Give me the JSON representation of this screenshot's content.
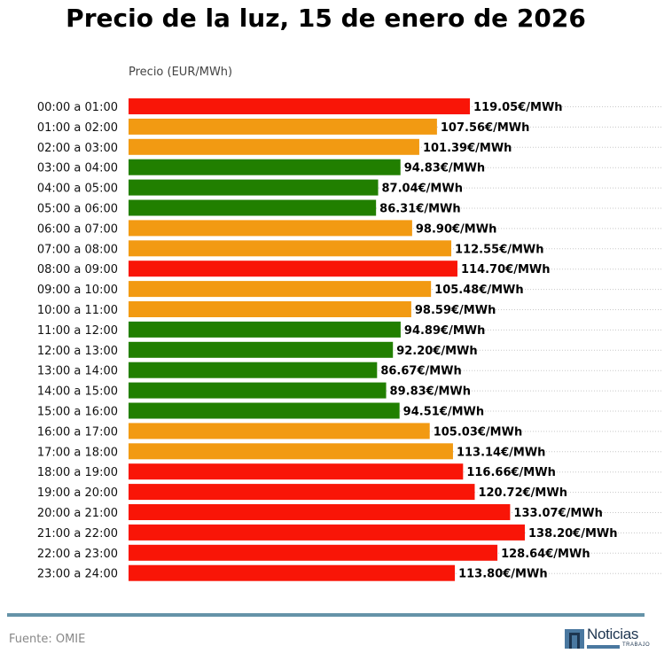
{
  "chart_data": {
    "type": "bar",
    "orientation": "horizontal",
    "title": "Precio de la luz, 15 de enero de 2026",
    "xlabel": "Precio (EUR/MWh)",
    "ylabel": "",
    "xlim": [
      0,
      138.2
    ],
    "grid": "dotted horizontal lines per row",
    "value_suffix": "€/MWh",
    "categories": [
      "00:00 a 01:00",
      "01:00 a 02:00",
      "02:00 a 03:00",
      "03:00 a 04:00",
      "04:00 a 05:00",
      "05:00 a 06:00",
      "06:00 a 07:00",
      "07:00 a 08:00",
      "08:00 a 09:00",
      "09:00 a 10:00",
      "10:00 a 11:00",
      "11:00 a 12:00",
      "12:00 a 13:00",
      "13:00 a 14:00",
      "14:00 a 15:00",
      "15:00 a 16:00",
      "16:00 a 17:00",
      "17:00 a 18:00",
      "18:00 a 19:00",
      "19:00 a 20:00",
      "20:00 a 21:00",
      "21:00 a 22:00",
      "22:00 a 23:00",
      "23:00 a 24:00"
    ],
    "values": [
      119.05,
      107.56,
      101.39,
      94.83,
      87.04,
      86.31,
      98.9,
      112.55,
      114.7,
      105.48,
      98.59,
      94.89,
      92.2,
      86.67,
      89.83,
      94.51,
      105.03,
      113.14,
      116.66,
      120.72,
      133.07,
      138.2,
      128.64,
      113.8
    ],
    "labels": [
      "119.05€/MWh",
      "107.56€/MWh",
      "101.39€/MWh",
      "94.83€/MWh",
      "87.04€/MWh",
      "86.31€/MWh",
      "98.90€/MWh",
      "112.55€/MWh",
      "114.70€/MWh",
      "105.48€/MWh",
      "98.59€/MWh",
      "94.89€/MWh",
      "92.20€/MWh",
      "86.67€/MWh",
      "89.83€/MWh",
      "94.51€/MWh",
      "105.03€/MWh",
      "113.14€/MWh",
      "116.66€/MWh",
      "120.72€/MWh",
      "133.07€/MWh",
      "138.20€/MWh",
      "128.64€/MWh",
      "113.80€/MWh"
    ],
    "levels": [
      "high",
      "mid",
      "mid",
      "low",
      "low",
      "low",
      "mid",
      "mid",
      "high",
      "mid",
      "mid",
      "low",
      "low",
      "low",
      "low",
      "low",
      "mid",
      "mid",
      "high",
      "high",
      "high",
      "high",
      "high",
      "high"
    ],
    "level_colors": {
      "low": "#217f00",
      "mid": "#f29a12",
      "high": "#f91507"
    }
  },
  "footer": {
    "source": "Fuente: OMIE",
    "logo_text": "Noticias",
    "logo_subtext": "TRABAJO",
    "rule_color": "#6593a8"
  }
}
